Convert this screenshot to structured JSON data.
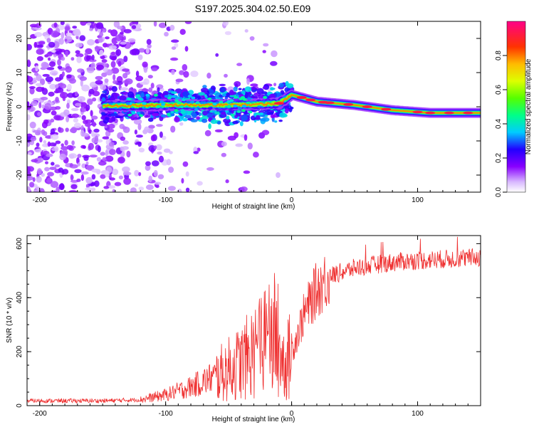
{
  "figure": {
    "title": "S197.2025.304.02.50.E09"
  },
  "chart_data": [
    {
      "type": "heatmap",
      "title": "S197.2025.304.02.50.E09",
      "xlabel": "Height of straight line (km)",
      "ylabel": "Frequency (Hz)",
      "xlim": [
        -210,
        150
      ],
      "ylim": [
        -25,
        25
      ],
      "xticks": [
        -200,
        -100,
        0,
        100
      ],
      "yticks": [
        -20,
        -10,
        0,
        10,
        20
      ],
      "colorbar": {
        "label": "Normalized spectral amplitude",
        "range": [
          0,
          1
        ],
        "ticks": [
          "0.0",
          "0.2",
          "0.4",
          "0.6",
          "0.8"
        ]
      },
      "ridge": {
        "description_points_x": [
          -150,
          -100,
          -50,
          -20,
          -10,
          0,
          20,
          50,
          80,
          110,
          150
        ],
        "description_points_freq": [
          0.2,
          0.5,
          0.5,
          0.8,
          1.0,
          3.5,
          1.5,
          0.5,
          -1.0,
          -1.8,
          -1.8
        ]
      }
    },
    {
      "type": "line",
      "xlabel": "Height of straight line (km)",
      "ylabel": "SNR (10 * v/v)",
      "xlim": [
        -210,
        150
      ],
      "ylim": [
        0,
        630
      ],
      "xticks": [
        -200,
        -100,
        0,
        100
      ],
      "yticks": [
        0,
        200,
        400,
        600
      ],
      "series": [
        {
          "name": "SNR",
          "color": "#ef3030",
          "x": [
            -210,
            -180,
            -150,
            -120,
            -100,
            -80,
            -60,
            -40,
            -25,
            -15,
            -5,
            0,
            10,
            20,
            30,
            50,
            70,
            90,
            110,
            130,
            150
          ],
          "y": [
            18,
            18,
            18,
            22,
            40,
            70,
            110,
            160,
            220,
            280,
            150,
            200,
            340,
            430,
            480,
            510,
            525,
            535,
            540,
            545,
            550
          ]
        }
      ]
    }
  ],
  "colors": {
    "series": "#ef3030"
  }
}
